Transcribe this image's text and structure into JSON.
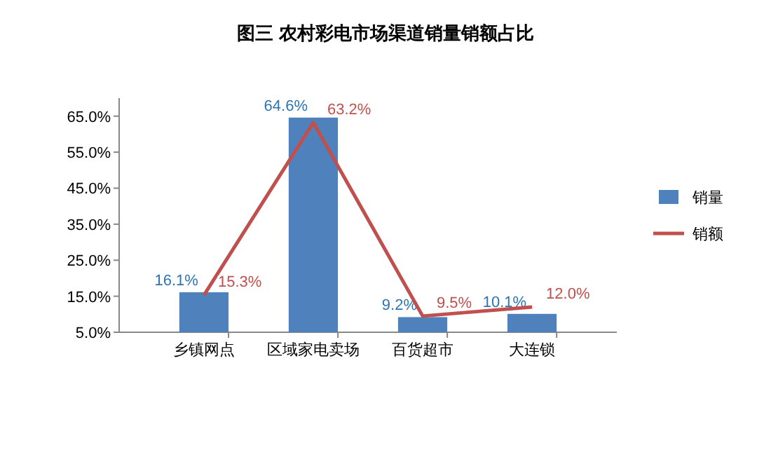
{
  "chart_data": {
    "type": "bar",
    "title": "图三  农村彩电市场渠道销量销额占比",
    "categories": [
      "乡镇网点",
      "区域家电卖场",
      "百货超市",
      "大连锁"
    ],
    "series": [
      {
        "name": "销量",
        "color": "#4f81bd",
        "values": [
          16.1,
          64.6,
          9.2,
          10.1
        ],
        "value_labels": [
          "16.1%",
          "64.6%",
          "9.2%",
          "10.1%"
        ]
      },
      {
        "name": "销额",
        "type": "line",
        "color": "#c0504d",
        "values": [
          15.3,
          63.2,
          9.5,
          12.0
        ],
        "value_labels": [
          "15.3%",
          "63.2%",
          "9.5%",
          "12.0%"
        ]
      }
    ],
    "ylim": [
      5,
      70
    ],
    "yticks": [
      {
        "value": 5,
        "label": "5.0%"
      },
      {
        "value": 15,
        "label": "15.0%"
      },
      {
        "value": 25,
        "label": "25.0%"
      },
      {
        "value": 35,
        "label": "35.0%"
      },
      {
        "value": 45,
        "label": "45.0%"
      },
      {
        "value": 55,
        "label": "55.0%"
      },
      {
        "value": 65,
        "label": "65.0%"
      }
    ],
    "grid": false,
    "legend": "right",
    "marker": "none"
  }
}
